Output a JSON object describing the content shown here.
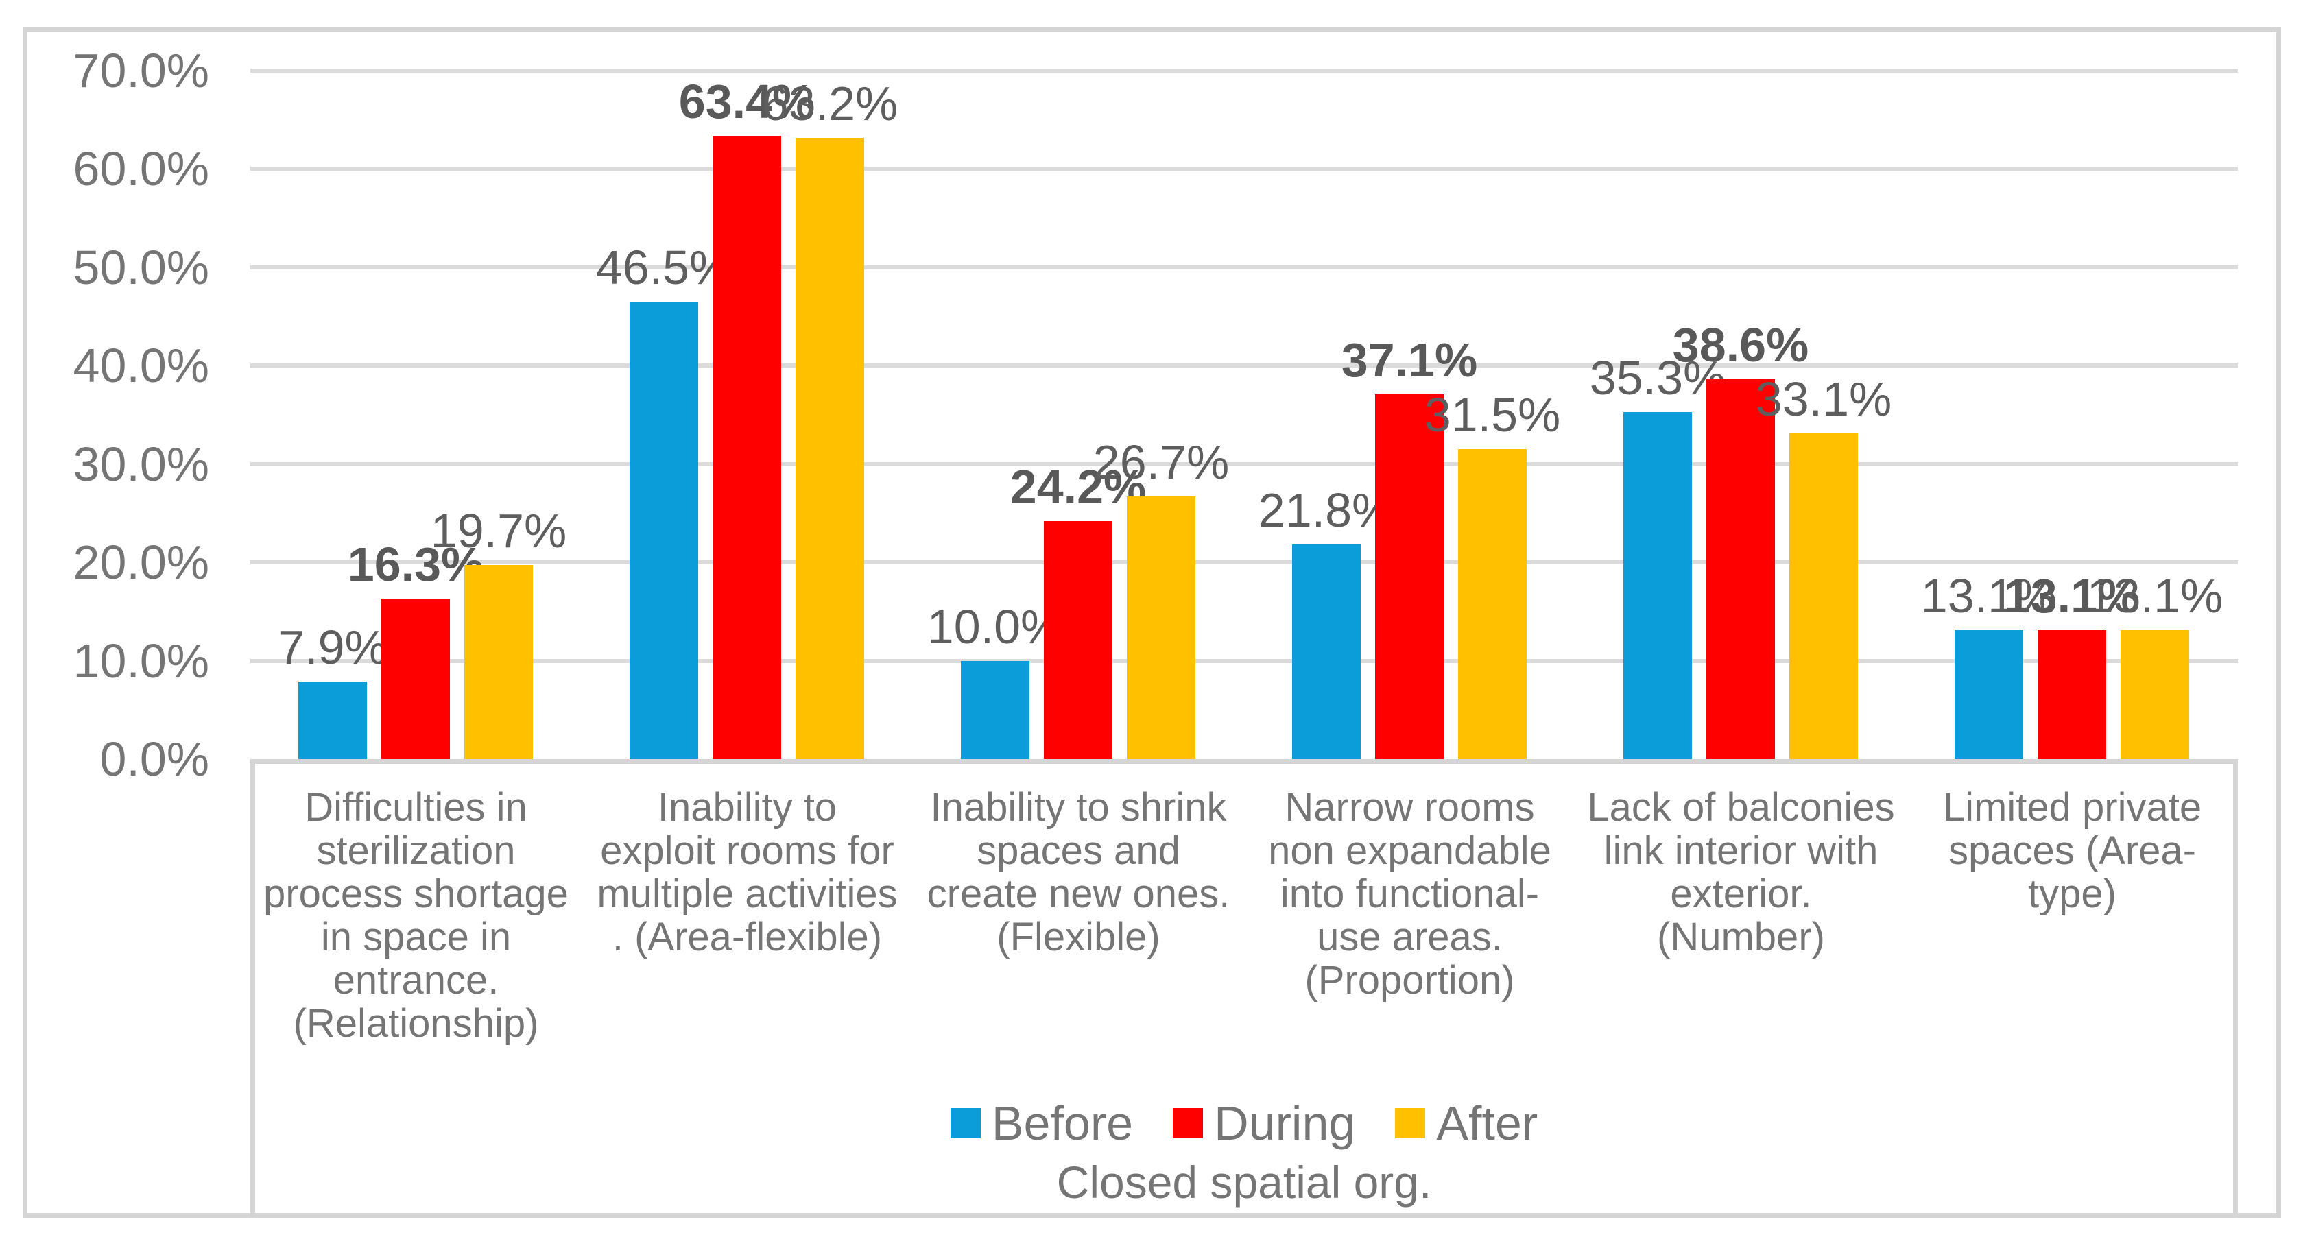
{
  "chart_data": {
    "type": "bar",
    "title": "",
    "x_axis_title": "Closed spatial org.",
    "y_axis": {
      "min": 0,
      "max": 70,
      "step": 10,
      "format": "percent_one_decimal",
      "ticks": [
        {
          "label": "70.0%",
          "value": 70
        },
        {
          "label": "60.0%",
          "value": 60
        },
        {
          "label": "50.0%",
          "value": 50
        },
        {
          "label": "40.0%",
          "value": 40
        },
        {
          "label": "30.0%",
          "value": 30
        },
        {
          "label": "20.0%",
          "value": 20
        },
        {
          "label": "10.0%",
          "value": 10
        },
        {
          "label": "0.0%",
          "value": 0
        }
      ]
    },
    "grid": true,
    "legend_position": "bottom",
    "categories": [
      {
        "label": "Difficulties in\nsterilization\nprocess shortage\nin space in\nentrance.\n(Relationship)"
      },
      {
        "label": "Inability to\nexploit rooms for\nmultiple activities\n. (Area-flexible)"
      },
      {
        "label": "Inability to shrink\nspaces and\ncreate new ones.\n(Flexible)"
      },
      {
        "label": "Narrow rooms\nnon expandable\ninto functional-\nuse areas.\n(Proportion)"
      },
      {
        "label": "Lack of balconies\nlink interior with\nexterior.\n(Number)"
      },
      {
        "label": "Limited private\nspaces (Area-\ntype)"
      }
    ],
    "series": [
      {
        "name": "Before",
        "color": "#0B9DD9",
        "bold_labels": false,
        "values": [
          7.9,
          46.5,
          10.0,
          21.8,
          35.3,
          13.1
        ],
        "labels": [
          "7.9%",
          "46.5%",
          "10.0%",
          "21.8%",
          "35.3%",
          "13.1%"
        ]
      },
      {
        "name": "During",
        "color": "#FF0000",
        "bold_labels": true,
        "values": [
          16.3,
          63.4,
          24.2,
          37.1,
          38.6,
          13.1
        ],
        "labels": [
          "16.3%",
          "63.4%",
          "24.2%",
          "37.1%",
          "38.6%",
          "13.1%"
        ]
      },
      {
        "name": "After",
        "color": "#FFC000",
        "bold_labels": false,
        "values": [
          19.7,
          63.2,
          26.7,
          31.5,
          33.1,
          13.1
        ],
        "labels": [
          "19.7%",
          "63.2%",
          "26.7%",
          "31.5%",
          "33.1%",
          "13.1%"
        ]
      }
    ]
  },
  "styles": {
    "gridline_color": "#DBDBDB",
    "border_color": "#D5D5D5",
    "axis_text_color": "#757575",
    "data_label_color": "#5E5E5E",
    "background": "#FFFFFF"
  }
}
